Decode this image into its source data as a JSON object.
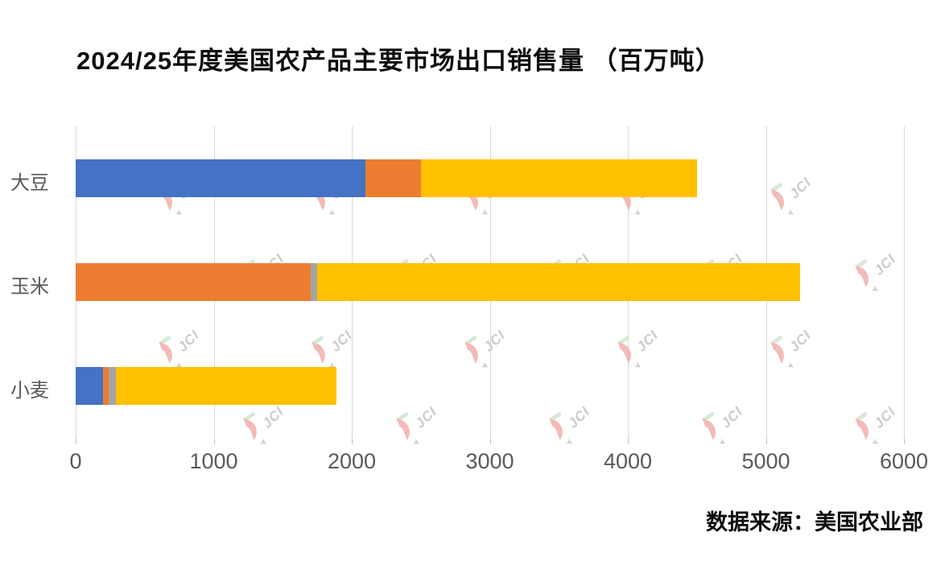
{
  "title": "2024/25年度美国农产品主要市场出口销售量 （百万吨）",
  "source_note": "数据来源：美国农业部",
  "watermark": {
    "text": "JCI"
  },
  "colors": {
    "blue": "#4472C4",
    "orange": "#ED7D31",
    "gray": "#A5A5A5",
    "yellow": "#FFC000",
    "gridline": "#D9D9D9",
    "axis_text": "#595959"
  },
  "chart_data": {
    "type": "bar",
    "orientation": "horizontal",
    "stacked": true,
    "title": "2024/25年度美国农产品主要市场出口销售量 （百万吨）",
    "categories": [
      "大豆",
      "玉米",
      "小麦"
    ],
    "series": [
      {
        "name": "blue",
        "color": "#4472C4",
        "values": [
          2100,
          0,
          200
        ]
      },
      {
        "name": "orange",
        "color": "#ED7D31",
        "values": [
          400,
          1700,
          40
        ]
      },
      {
        "name": "gray",
        "color": "#A5A5A5",
        "values": [
          0,
          50,
          50
        ]
      },
      {
        "name": "yellow",
        "color": "#FFC000",
        "values": [
          2000,
          3500,
          1600
        ]
      }
    ],
    "totals": [
      4500,
      5250,
      1890
    ],
    "xlabel": "",
    "ylabel": "",
    "xlim": [
      0,
      6000
    ],
    "x_ticks": [
      0,
      1000,
      2000,
      3000,
      4000,
      5000,
      6000
    ],
    "grid": true,
    "legend": "none"
  }
}
